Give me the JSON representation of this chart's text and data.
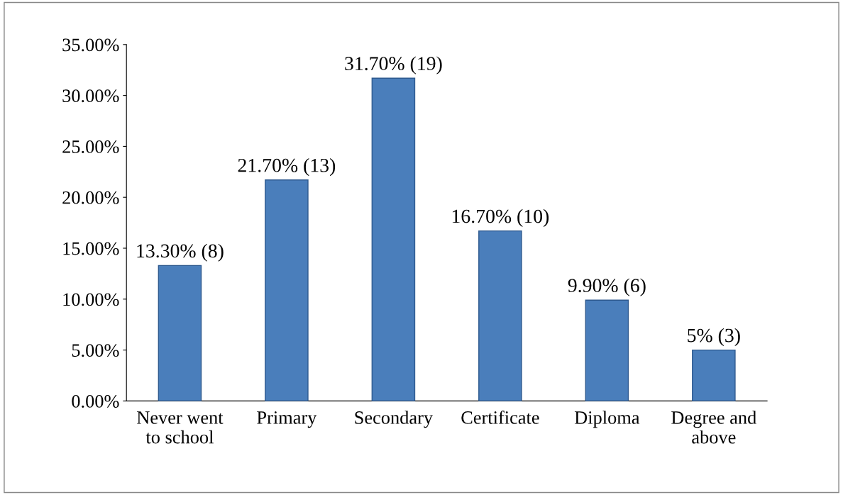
{
  "chart_data": {
    "type": "bar",
    "categories": [
      "Never went\nto school",
      "Primary",
      "Secondary",
      "Certificate",
      "Diploma",
      "Degree and\nabove"
    ],
    "values": [
      13.3,
      21.7,
      31.7,
      16.7,
      9.9,
      5
    ],
    "value_labels": [
      "13.30% (8)",
      "21.70% (13)",
      "31.70% (19)",
      "16.70% (10)",
      "9.90% (6)",
      "5% (3)"
    ],
    "color": "#4a7ebb",
    "ylim": [
      0,
      35
    ],
    "yticks": [
      {
        "value": 0,
        "label": "0.00%"
      },
      {
        "value": 5,
        "label": "5.00%"
      },
      {
        "value": 10,
        "label": "10.00%"
      },
      {
        "value": 15,
        "label": "15.00%"
      },
      {
        "value": 20,
        "label": "20.00%"
      },
      {
        "value": 25,
        "label": "25.00%"
      },
      {
        "value": 30,
        "label": "30.00%"
      },
      {
        "value": 35,
        "label": "35.00%"
      }
    ],
    "grid": false,
    "legend": false
  }
}
